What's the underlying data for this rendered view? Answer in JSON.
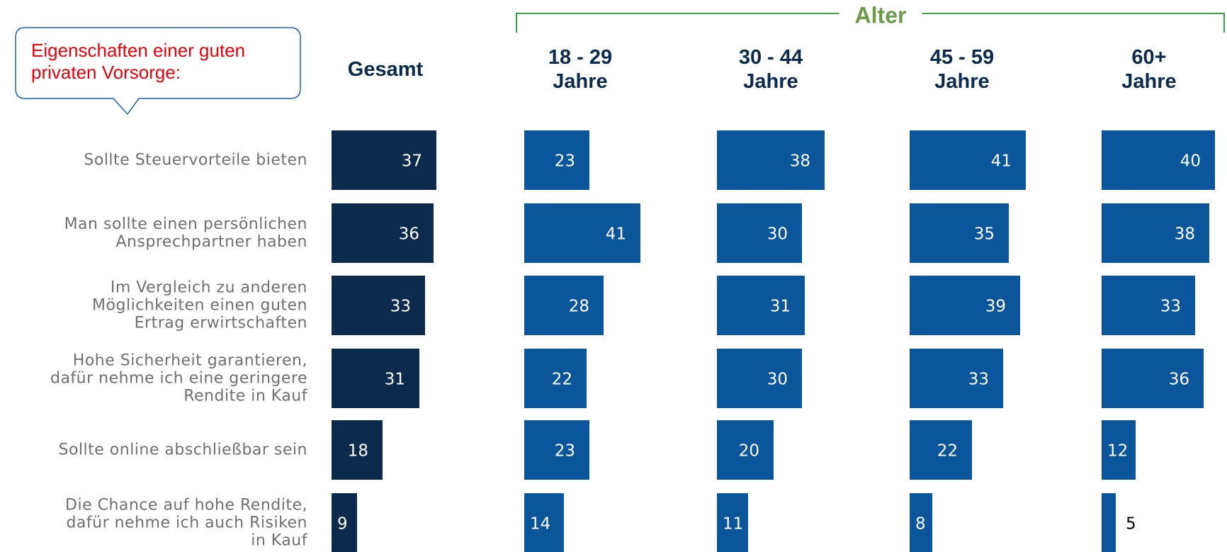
{
  "chart_data": {
    "type": "bar",
    "annotation": "Eigenschaften einer guten\nprivaten Vorsorge:",
    "group_label": "Alter",
    "categories": [
      "Sollte Steuervorteile bieten",
      "Man sollte einen persönlichen\nAnsprechpartner haben",
      "Im Vergleich zu anderen\nMöglichkeiten einen guten\nErtrag erwirtschaften",
      "Hohe Sicherheit garantieren,\ndafür nehme ich eine geringere\nRendite in Kauf",
      "Sollte online abschließbar sein",
      "Die Chance auf hohe Rendite,\ndafür nehme ich auch Risiken\nin Kauf"
    ],
    "series": [
      {
        "name": "Gesamt",
        "color": "#0b2a4c",
        "values": [
          37,
          36,
          33,
          31,
          18,
          9
        ]
      },
      {
        "name": "18 - 29\nJahre",
        "color": "#0b559b",
        "values": [
          23,
          41,
          28,
          22,
          23,
          14
        ]
      },
      {
        "name": "30 - 44\nJahre",
        "color": "#0b559b",
        "values": [
          38,
          30,
          31,
          30,
          20,
          11
        ]
      },
      {
        "name": "45 - 59\nJahre",
        "color": "#0b559b",
        "values": [
          41,
          35,
          39,
          33,
          22,
          8
        ]
      },
      {
        "name": "60+\nJahre",
        "color": "#0b559b",
        "values": [
          40,
          38,
          33,
          36,
          12,
          5
        ]
      }
    ]
  }
}
